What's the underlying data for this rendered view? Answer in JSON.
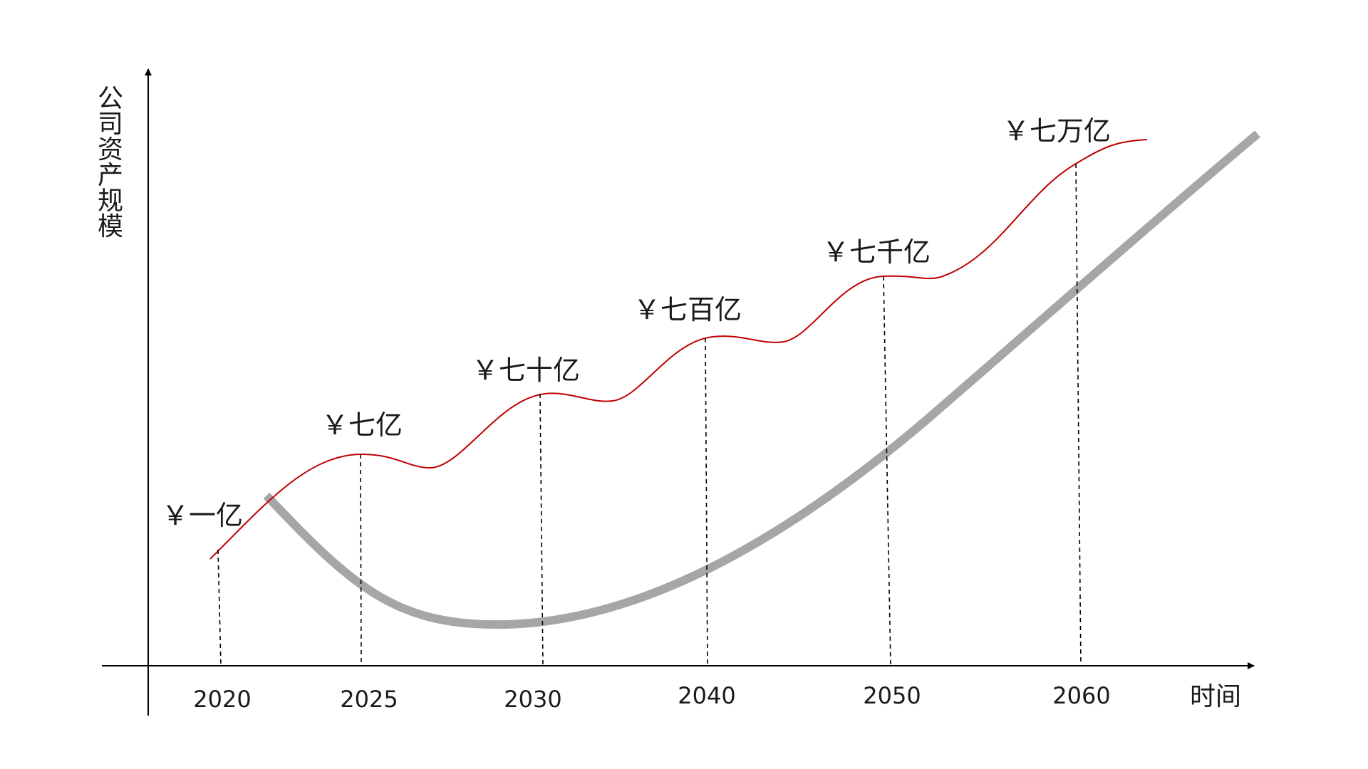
{
  "chart_data": {
    "type": "line",
    "title": "",
    "xlabel": "时间",
    "ylabel": "公司资产规模",
    "categories": [
      "2020",
      "2025",
      "2030",
      "2040",
      "2050",
      "2060"
    ],
    "series": [
      {
        "values": [
          1,
          7,
          70,
          700,
          7000,
          70000
        ],
        "labels": [
          "￥一亿",
          "￥七亿",
          "￥七十亿",
          "￥七百亿",
          "￥七千亿",
          "￥七万亿"
        ],
        "color": "#c00000"
      },
      {
        "color": "#a6a6a6"
      }
    ],
    "grid": false,
    "legend": "none"
  }
}
